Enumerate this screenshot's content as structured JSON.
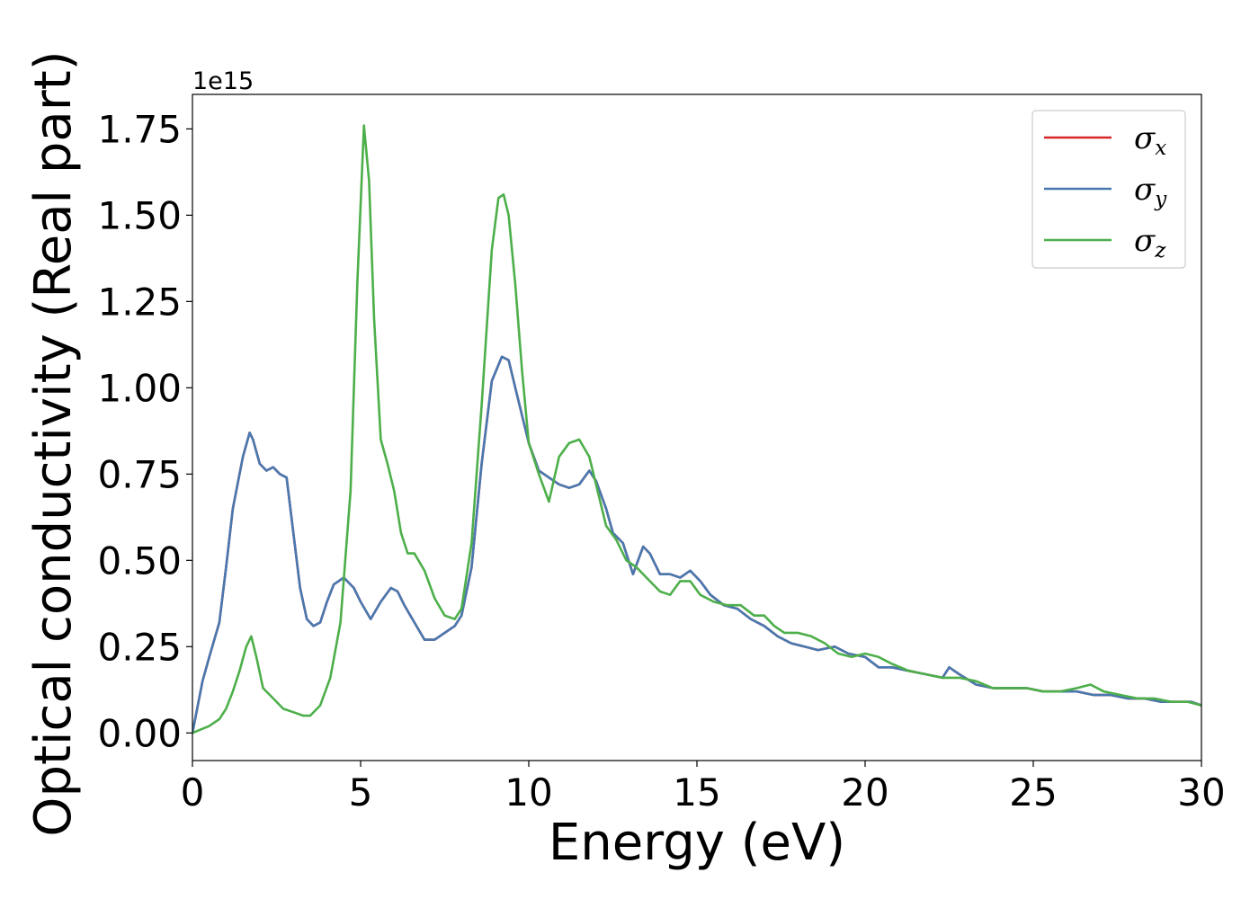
{
  "chart_data": {
    "type": "line",
    "xlabel": "Energy (eV)",
    "ylabel": "Optical conductivity (Real part)",
    "y_offset_label": "1e15",
    "xlim": [
      0,
      30
    ],
    "ylim": [
      -0.08,
      1.85
    ],
    "x_ticks": [
      0,
      5,
      10,
      15,
      20,
      25,
      30
    ],
    "x_tick_labels": [
      "0",
      "5",
      "10",
      "15",
      "20",
      "25",
      "30"
    ],
    "y_ticks": [
      0.0,
      0.25,
      0.5,
      0.75,
      1.0,
      1.25,
      1.5,
      1.75
    ],
    "y_tick_labels": [
      "0.00",
      "0.25",
      "0.50",
      "0.75",
      "1.00",
      "1.25",
      "1.50",
      "1.75"
    ],
    "grid": false,
    "legend_position": "top-right",
    "series": [
      {
        "name": "σx",
        "legend_symbol": "σ",
        "legend_sub": "x",
        "color": "#d62728",
        "x": [
          0,
          0.3,
          0.5,
          0.8,
          1.0,
          1.2,
          1.5,
          1.7,
          1.8,
          2.0,
          2.2,
          2.4,
          2.6,
          2.8,
          3.0,
          3.2,
          3.4,
          3.6,
          3.8,
          4.0,
          4.2,
          4.5,
          4.8,
          5.0,
          5.3,
          5.6,
          5.9,
          6.1,
          6.3,
          6.6,
          6.9,
          7.2,
          7.5,
          7.8,
          8.0,
          8.3,
          8.6,
          8.9,
          9.2,
          9.4,
          9.6,
          9.8,
          10.0,
          10.3,
          10.6,
          10.9,
          11.2,
          11.5,
          11.8,
          12.0,
          12.3,
          12.5,
          12.8,
          13.1,
          13.4,
          13.6,
          13.9,
          14.2,
          14.5,
          14.8,
          15.1,
          15.4,
          15.8,
          16.2,
          16.6,
          17.0,
          17.4,
          17.8,
          18.2,
          18.6,
          19.1,
          19.5,
          20.0,
          20.4,
          20.8,
          21.3,
          21.8,
          22.3,
          22.5,
          22.8,
          23.3,
          23.8,
          24.3,
          24.8,
          25.3,
          25.8,
          26.3,
          26.8,
          27.3,
          27.8,
          28.3,
          28.8,
          29.3,
          29.7,
          30.0
        ],
        "y": [
          0.0,
          0.15,
          0.22,
          0.32,
          0.48,
          0.65,
          0.8,
          0.87,
          0.85,
          0.78,
          0.76,
          0.77,
          0.75,
          0.74,
          0.58,
          0.42,
          0.33,
          0.31,
          0.32,
          0.38,
          0.43,
          0.45,
          0.42,
          0.38,
          0.33,
          0.38,
          0.42,
          0.41,
          0.37,
          0.32,
          0.27,
          0.27,
          0.29,
          0.31,
          0.34,
          0.48,
          0.78,
          1.02,
          1.09,
          1.08,
          1.0,
          0.92,
          0.84,
          0.76,
          0.74,
          0.72,
          0.71,
          0.72,
          0.76,
          0.73,
          0.65,
          0.58,
          0.55,
          0.46,
          0.54,
          0.52,
          0.46,
          0.46,
          0.45,
          0.47,
          0.44,
          0.4,
          0.37,
          0.36,
          0.33,
          0.31,
          0.28,
          0.26,
          0.25,
          0.24,
          0.25,
          0.23,
          0.22,
          0.19,
          0.19,
          0.18,
          0.17,
          0.16,
          0.19,
          0.17,
          0.14,
          0.13,
          0.13,
          0.13,
          0.12,
          0.12,
          0.12,
          0.11,
          0.11,
          0.1,
          0.1,
          0.09,
          0.09,
          0.09,
          0.08
        ]
      },
      {
        "name": "σy",
        "legend_symbol": "σ",
        "legend_sub": "y",
        "color": "#4878b0",
        "x": [
          0,
          0.3,
          0.5,
          0.8,
          1.0,
          1.2,
          1.5,
          1.7,
          1.8,
          2.0,
          2.2,
          2.4,
          2.6,
          2.8,
          3.0,
          3.2,
          3.4,
          3.6,
          3.8,
          4.0,
          4.2,
          4.5,
          4.8,
          5.0,
          5.3,
          5.6,
          5.9,
          6.1,
          6.3,
          6.6,
          6.9,
          7.2,
          7.5,
          7.8,
          8.0,
          8.3,
          8.6,
          8.9,
          9.2,
          9.4,
          9.6,
          9.8,
          10.0,
          10.3,
          10.6,
          10.9,
          11.2,
          11.5,
          11.8,
          12.0,
          12.3,
          12.5,
          12.8,
          13.1,
          13.4,
          13.6,
          13.9,
          14.2,
          14.5,
          14.8,
          15.1,
          15.4,
          15.8,
          16.2,
          16.6,
          17.0,
          17.4,
          17.8,
          18.2,
          18.6,
          19.1,
          19.5,
          20.0,
          20.4,
          20.8,
          21.3,
          21.8,
          22.3,
          22.5,
          22.8,
          23.3,
          23.8,
          24.3,
          24.8,
          25.3,
          25.8,
          26.3,
          26.8,
          27.3,
          27.8,
          28.3,
          28.8,
          29.3,
          29.7,
          30.0
        ],
        "y": [
          0.0,
          0.15,
          0.22,
          0.32,
          0.48,
          0.65,
          0.8,
          0.87,
          0.85,
          0.78,
          0.76,
          0.77,
          0.75,
          0.74,
          0.58,
          0.42,
          0.33,
          0.31,
          0.32,
          0.38,
          0.43,
          0.45,
          0.42,
          0.38,
          0.33,
          0.38,
          0.42,
          0.41,
          0.37,
          0.32,
          0.27,
          0.27,
          0.29,
          0.31,
          0.34,
          0.48,
          0.78,
          1.02,
          1.09,
          1.08,
          1.0,
          0.92,
          0.84,
          0.76,
          0.74,
          0.72,
          0.71,
          0.72,
          0.76,
          0.73,
          0.65,
          0.58,
          0.55,
          0.46,
          0.54,
          0.52,
          0.46,
          0.46,
          0.45,
          0.47,
          0.44,
          0.4,
          0.37,
          0.36,
          0.33,
          0.31,
          0.28,
          0.26,
          0.25,
          0.24,
          0.25,
          0.23,
          0.22,
          0.19,
          0.19,
          0.18,
          0.17,
          0.16,
          0.19,
          0.17,
          0.14,
          0.13,
          0.13,
          0.13,
          0.12,
          0.12,
          0.12,
          0.11,
          0.11,
          0.1,
          0.1,
          0.09,
          0.09,
          0.09,
          0.08
        ]
      },
      {
        "name": "σz",
        "legend_symbol": "σ",
        "legend_sub": "z",
        "color": "#4daf4a",
        "x": [
          0,
          0.5,
          0.8,
          1.0,
          1.2,
          1.4,
          1.6,
          1.75,
          1.9,
          2.1,
          2.4,
          2.7,
          3.0,
          3.3,
          3.5,
          3.8,
          4.1,
          4.4,
          4.7,
          4.9,
          5.1,
          5.25,
          5.4,
          5.6,
          5.8,
          6.0,
          6.2,
          6.4,
          6.6,
          6.9,
          7.2,
          7.5,
          7.8,
          8.0,
          8.3,
          8.6,
          8.9,
          9.1,
          9.25,
          9.4,
          9.6,
          9.8,
          10.0,
          10.3,
          10.6,
          10.9,
          11.2,
          11.5,
          11.8,
          12.0,
          12.3,
          12.6,
          12.9,
          13.2,
          13.6,
          13.9,
          14.2,
          14.5,
          14.8,
          15.1,
          15.5,
          15.9,
          16.3,
          16.7,
          17.0,
          17.3,
          17.6,
          18.0,
          18.4,
          18.8,
          19.2,
          19.6,
          20.0,
          20.4,
          20.8,
          21.3,
          21.8,
          22.3,
          22.8,
          23.3,
          23.8,
          24.3,
          24.8,
          25.3,
          25.8,
          26.3,
          26.7,
          27.1,
          27.6,
          28.1,
          28.6,
          29.1,
          29.6,
          30.0
        ],
        "y": [
          0.0,
          0.02,
          0.04,
          0.07,
          0.12,
          0.18,
          0.25,
          0.28,
          0.22,
          0.13,
          0.1,
          0.07,
          0.06,
          0.05,
          0.05,
          0.08,
          0.16,
          0.32,
          0.7,
          1.3,
          1.76,
          1.6,
          1.2,
          0.85,
          0.78,
          0.7,
          0.58,
          0.52,
          0.52,
          0.47,
          0.39,
          0.34,
          0.33,
          0.36,
          0.55,
          0.95,
          1.4,
          1.55,
          1.56,
          1.5,
          1.3,
          1.05,
          0.84,
          0.75,
          0.67,
          0.8,
          0.84,
          0.85,
          0.8,
          0.72,
          0.6,
          0.56,
          0.5,
          0.48,
          0.44,
          0.41,
          0.4,
          0.44,
          0.44,
          0.4,
          0.38,
          0.37,
          0.37,
          0.34,
          0.34,
          0.31,
          0.29,
          0.29,
          0.28,
          0.26,
          0.23,
          0.22,
          0.23,
          0.22,
          0.2,
          0.18,
          0.17,
          0.16,
          0.16,
          0.15,
          0.13,
          0.13,
          0.13,
          0.12,
          0.12,
          0.13,
          0.14,
          0.12,
          0.11,
          0.1,
          0.1,
          0.09,
          0.09,
          0.08
        ]
      }
    ]
  }
}
